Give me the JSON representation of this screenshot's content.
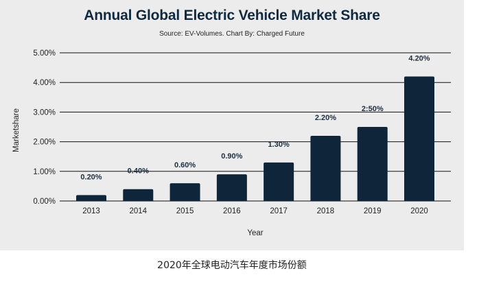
{
  "chart_data": {
    "type": "bar",
    "title": "Annual Global Electric Vehicle Market Share",
    "subtitle": "Source: EV-Volumes. Chart By: Charged Future",
    "xlabel": "Year",
    "ylabel": "Marketshare",
    "categories": [
      "2013",
      "2014",
      "2015",
      "2016",
      "2017",
      "2018",
      "2019",
      "2020"
    ],
    "values": [
      0.2,
      0.4,
      0.6,
      0.9,
      1.3,
      2.2,
      2.5,
      4.2
    ],
    "data_labels": [
      "0.20%",
      "0.40%",
      "0.60%",
      "0.90%",
      "1.30%",
      "2.20%",
      "2:50%",
      "4.20%"
    ],
    "ylim": [
      0,
      5
    ],
    "yticks": [
      0,
      1,
      2,
      3,
      4,
      5
    ],
    "ytick_labels": [
      "0.00%",
      "1.00%",
      "2.00%",
      "3.00%",
      "4.00%",
      "5.00%"
    ],
    "grid": true,
    "legend": "none",
    "colors": {
      "bar": "#0e253a",
      "background": "#ececec",
      "title": "#0f2a40"
    }
  },
  "caption": "2020年全球电动汽车年度市场份额"
}
